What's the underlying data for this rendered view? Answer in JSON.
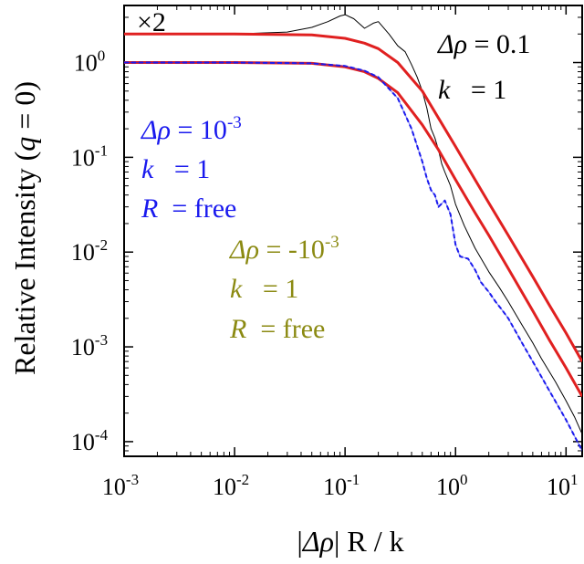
{
  "chart_data": {
    "type": "line",
    "title": "",
    "xlabel_parts": {
      "bar_open": "|",
      "symbol": "Δρ",
      "bar_close": "| R / k"
    },
    "ylabel_parts": {
      "prefix": "Relative Intensity (",
      "q": "q",
      "suffix": " = 0)"
    },
    "xscale": "log",
    "yscale": "log",
    "xlim": [
      0.001,
      14
    ],
    "ylim": [
      7e-05,
      4
    ],
    "x_ticks": [
      {
        "base": "10",
        "exp": "-3",
        "value": 0.001
      },
      {
        "base": "10",
        "exp": "-2",
        "value": 0.01
      },
      {
        "base": "10",
        "exp": "-1",
        "value": 0.1
      },
      {
        "base": "10",
        "exp": "0",
        "value": 1
      },
      {
        "base": "10",
        "exp": "1",
        "value": 10
      }
    ],
    "y_ticks": [
      {
        "base": "10",
        "exp": "-4",
        "value": 0.0001
      },
      {
        "base": "10",
        "exp": "-3",
        "value": 0.001
      },
      {
        "base": "10",
        "exp": "-2",
        "value": 0.01
      },
      {
        "base": "10",
        "exp": "-1",
        "value": 0.1
      },
      {
        "base": "10",
        "exp": "0",
        "value": 1
      }
    ],
    "grid": false,
    "legend": "none",
    "series": [
      {
        "kind": "black-thin",
        "color": "#000000",
        "x": [
          0.001,
          0.01,
          0.03,
          0.05,
          0.07,
          0.09,
          0.1,
          0.12,
          0.15,
          0.18,
          0.2,
          0.25,
          0.3,
          0.35,
          0.4,
          0.45,
          0.5,
          0.55,
          0.6,
          0.65,
          0.7,
          0.75,
          0.8,
          0.9,
          1.0,
          1.2,
          1.5,
          2.0,
          2.5,
          3,
          4,
          5,
          6,
          8,
          10,
          12,
          14
        ],
        "y": [
          2.0,
          2.0,
          2.1,
          2.35,
          2.7,
          3.1,
          3.2,
          2.9,
          2.3,
          2.6,
          2.7,
          2.0,
          1.5,
          1.3,
          0.95,
          0.7,
          0.5,
          0.33,
          0.2,
          0.16,
          0.12,
          0.085,
          0.07,
          0.05,
          0.032,
          0.019,
          0.011,
          0.0062,
          0.0042,
          0.003,
          0.0017,
          0.0011,
          0.00075,
          0.00043,
          0.00027,
          0.00018,
          0.00012
        ]
      },
      {
        "kind": "red-upper",
        "color": "#e02020",
        "x": [
          0.001,
          0.01,
          0.05,
          0.1,
          0.15,
          0.2,
          0.3,
          0.5,
          0.7,
          1.0,
          1.5,
          2,
          3,
          5,
          7,
          10,
          14
        ],
        "y": [
          2.0,
          2.0,
          1.96,
          1.8,
          1.6,
          1.4,
          1.0,
          0.5,
          0.26,
          0.13,
          0.058,
          0.033,
          0.015,
          0.0055,
          0.0028,
          0.0014,
          0.0007
        ]
      },
      {
        "kind": "red-lower",
        "color": "#e02020",
        "x": [
          0.001,
          0.01,
          0.05,
          0.1,
          0.15,
          0.2,
          0.3,
          0.5,
          0.7,
          1.0,
          1.5,
          2,
          3,
          5,
          7,
          10,
          14
        ],
        "y": [
          1.0,
          1.0,
          0.98,
          0.9,
          0.8,
          0.68,
          0.48,
          0.22,
          0.12,
          0.058,
          0.026,
          0.015,
          0.0067,
          0.0024,
          0.0012,
          0.0006,
          0.0003
        ]
      },
      {
        "kind": "blue-dashed",
        "color": "#1a1aee",
        "x": [
          0.001,
          0.01,
          0.05,
          0.1,
          0.15,
          0.2,
          0.3,
          0.4,
          0.5,
          0.55,
          0.6,
          0.65,
          0.7,
          0.8,
          0.9,
          1.0,
          1.1,
          1.3,
          1.5,
          1.7,
          2.0,
          2.3,
          2.6,
          3,
          4,
          5,
          7,
          10,
          14
        ],
        "y": [
          1.0,
          1.0,
          0.98,
          0.92,
          0.82,
          0.7,
          0.42,
          0.2,
          0.09,
          0.06,
          0.045,
          0.04,
          0.03,
          0.035,
          0.025,
          0.012,
          0.009,
          0.0085,
          0.0065,
          0.0048,
          0.0038,
          0.003,
          0.0025,
          0.002,
          0.0011,
          0.0007,
          0.00035,
          0.00017,
          8e-05
        ]
      }
    ],
    "annotations": [
      {
        "id": "x2",
        "text": "×2",
        "color": "#000000"
      },
      {
        "id": "black-rho",
        "sym": "Δρ",
        "rest": " = 0.1",
        "color": "#000000"
      },
      {
        "id": "black-k",
        "sym": "k",
        "rest": "   = 1",
        "color": "#000000"
      },
      {
        "id": "blue-rho",
        "sym": "Δρ",
        "rest": " = 10",
        "sup": "-3",
        "color": "#1a1aee"
      },
      {
        "id": "blue-k",
        "sym": "k",
        "rest": "   = 1",
        "color": "#1a1aee"
      },
      {
        "id": "blue-R",
        "sym": "R",
        "rest": "  = free",
        "color": "#1a1aee"
      },
      {
        "id": "olive-rho",
        "sym": "Δρ",
        "rest": " = -10",
        "sup": "-3",
        "color": "#8b8a12"
      },
      {
        "id": "olive-k",
        "sym": "k",
        "rest": "   = 1",
        "color": "#8b8a12"
      },
      {
        "id": "olive-R",
        "sym": "R",
        "rest": "  = free",
        "color": "#8b8a12"
      }
    ]
  }
}
